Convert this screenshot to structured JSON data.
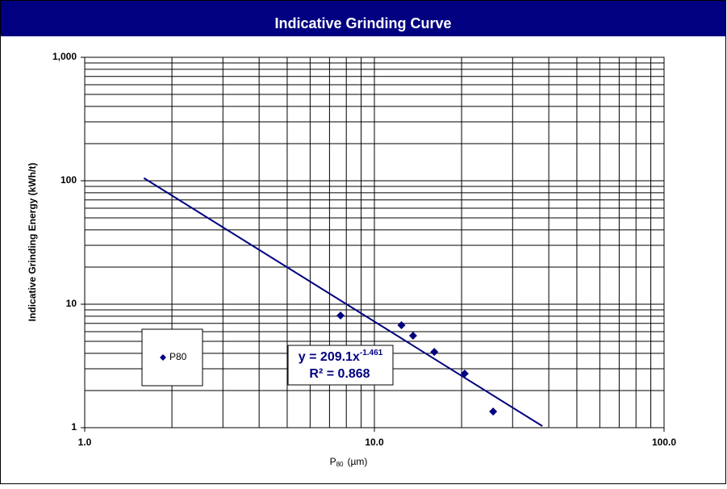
{
  "chart_data": {
    "type": "scatter",
    "title": "Indicative Grinding Curve",
    "x_label": {
      "main": "P",
      "sub": "80",
      "unit": "(µm)"
    },
    "y_label": "Indicative Grinding Energy  (kWh/t)",
    "xscale": "log",
    "yscale": "log",
    "grid": true,
    "xlim": [
      1,
      100
    ],
    "xticks": [
      {
        "value": 1,
        "label": "1.0"
      },
      {
        "value": 10,
        "label": "10.0"
      },
      {
        "value": 100,
        "label": "100.0"
      }
    ],
    "x_minor_ticks": [
      2,
      3,
      4,
      5,
      6,
      7,
      8,
      9,
      20,
      30,
      40,
      50,
      60,
      70,
      80,
      90
    ],
    "ylim": [
      1,
      1000
    ],
    "yticks": [
      1,
      10,
      100,
      {
        "value": 1000,
        "label": "1,000"
      }
    ],
    "y_minor_ticks": [
      2,
      3,
      4,
      5,
      6,
      7,
      8,
      9,
      20,
      30,
      40,
      50,
      60,
      70,
      80,
      90,
      200,
      300,
      400,
      500,
      600,
      700,
      800,
      900
    ],
    "legend": "lower-left",
    "series": [
      {
        "name": "P80",
        "color": "#000080",
        "x": [
          7.64,
          12.4,
          13.6,
          16.1,
          20.5,
          25.7
        ],
        "values": [
          8.1,
          6.76,
          5.56,
          4.11,
          2.74,
          1.35
        ]
      }
    ],
    "trendline": {
      "color": "#000080",
      "x": [
        1.6,
        38
      ],
      "values": [
        105.2,
        1.03
      ],
      "equation": "y = 209.1x",
      "exponent_label": "-1.461",
      "r_squared_label": "R² = 0.868"
    }
  }
}
